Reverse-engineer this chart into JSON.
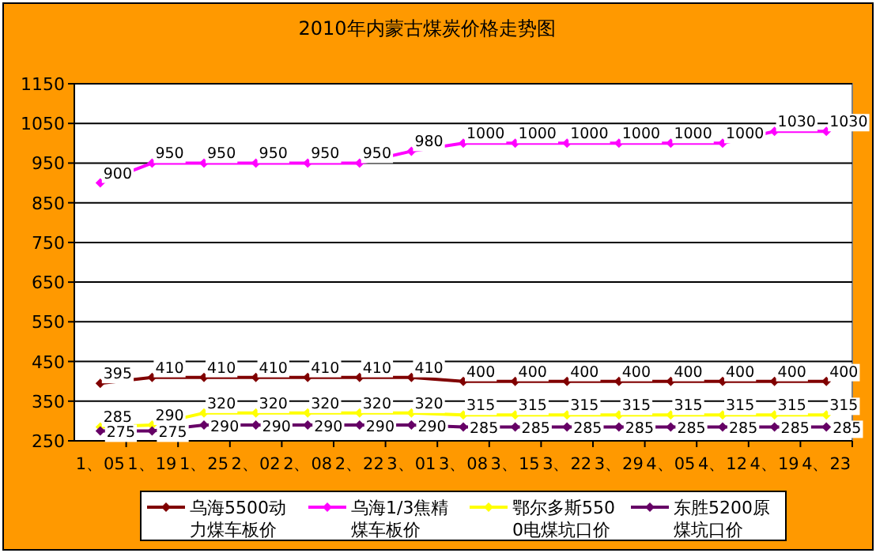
{
  "chart_data": {
    "type": "line",
    "title": "2010年内蒙古煤炭价格走势图",
    "categories": [
      "1、05",
      "1、19",
      "1、25",
      "2、02",
      "2、08",
      "2、22",
      "3、01",
      "3、08",
      "3、15",
      "3、22",
      "3、29",
      "4、05",
      "4、12",
      "4、19",
      "4、23"
    ],
    "series": [
      {
        "name": "乌海5500动力煤车板价",
        "color": "#800000",
        "values": [
          395,
          410,
          410,
          410,
          410,
          410,
          410,
          400,
          400,
          400,
          400,
          400,
          400,
          400,
          400
        ]
      },
      {
        "name": "乌海1/3焦精煤车板价",
        "color": "#ff00ff",
        "values": [
          900,
          950,
          950,
          950,
          950,
          950,
          980,
          1000,
          1000,
          1000,
          1000,
          1000,
          1000,
          1030,
          1030
        ]
      },
      {
        "name": "鄂尔多斯5500电煤坑口价",
        "color": "#ffff00",
        "values": [
          285,
          290,
          320,
          320,
          320,
          320,
          320,
          315,
          315,
          315,
          315,
          315,
          315,
          315,
          315
        ]
      },
      {
        "name": "东胜5200原煤坑口价",
        "color": "#660066",
        "values": [
          275,
          275,
          290,
          290,
          290,
          290,
          290,
          285,
          285,
          285,
          285,
          285,
          285,
          285,
          285
        ]
      }
    ],
    "ylim": [
      250,
      1150
    ],
    "yticks": [
      250,
      350,
      450,
      550,
      650,
      750,
      850,
      950,
      1050,
      1150
    ],
    "grid": "y",
    "legend": "bottom",
    "marker": "diamond",
    "line_style": "solid",
    "data_labels": true
  }
}
